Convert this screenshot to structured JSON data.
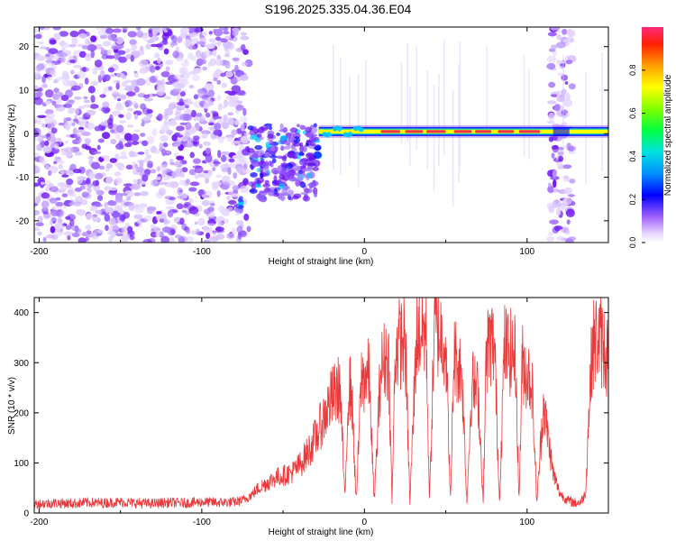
{
  "figure": {
    "title": "S196.2025.335.04.36.E04"
  },
  "chart_data": [
    {
      "type": "heatmap",
      "name": "spectrogram",
      "title": "S196.2025.335.04.36.E04",
      "xlabel": "Height of straight line (km)",
      "ylabel": "Frequency (Hz)",
      "xlim": [
        -203,
        150
      ],
      "ylim": [
        -25,
        24.5
      ],
      "xticks": [
        -200,
        -100,
        0,
        100
      ],
      "yticks": [
        -20,
        -10,
        0,
        10,
        20
      ],
      "colorbar": {
        "label": "Normalized spectral amplitude",
        "range": [
          0,
          1
        ],
        "ticks": [
          0.0,
          0.2,
          0.4,
          0.6,
          0.8
        ],
        "tick_labels": [
          "0.0",
          "0.2",
          "0.4",
          "0.6",
          "0.8"
        ],
        "colormap": [
          "#e8d8ff",
          "#7f00ff",
          "#0000ff",
          "#00c8ff",
          "#00ff60",
          "#a0ff00",
          "#ffff00",
          "#ff8000",
          "#ff0000",
          "#ff2080"
        ]
      },
      "regions": [
        {
          "x_range": [
            -203,
            -71
          ],
          "desc": "broadband noise",
          "amplitude": 0.1
        },
        {
          "x_range": [
            -70,
            -28
          ],
          "desc": "scattered energy",
          "freq_range": [
            -15,
            2
          ],
          "amplitude": 0.2
        },
        {
          "x_range": [
            -28,
            150
          ],
          "desc": "narrow tone",
          "freq": 0.5,
          "amplitude": 0.95
        },
        {
          "x_range": [
            114,
            128
          ],
          "desc": "broadband noise",
          "amplitude": 0.1
        }
      ],
      "colors": {
        "noise": "#8a2be2",
        "tone_core": "#e8384f",
        "tone_edge": "#00d0c0"
      }
    },
    {
      "type": "line",
      "name": "snr",
      "xlabel": "Height of straight line (km)",
      "ylabel": "SNR (10 * v/v)",
      "xlim": [
        -203,
        150
      ],
      "ylim": [
        0,
        430
      ],
      "xticks": [
        -200,
        -100,
        0,
        100
      ],
      "yticks": [
        0,
        100,
        200,
        300,
        400
      ],
      "color": "#e83a3a",
      "series": [
        {
          "name": "SNR",
          "x": [
            -203,
            -190,
            -180,
            -170,
            -160,
            -150,
            -140,
            -130,
            -120,
            -110,
            -100,
            -90,
            -80,
            -75,
            -70,
            -65,
            -60,
            -55,
            -50,
            -45,
            -40,
            -35,
            -30,
            -25,
            -20,
            -15,
            -12,
            -10,
            -8,
            -5,
            -2,
            0,
            3,
            6,
            10,
            13,
            15,
            17,
            19,
            22,
            25,
            28,
            32,
            35,
            38,
            40,
            43,
            46,
            50,
            53,
            55,
            57,
            60,
            63,
            66,
            70,
            73,
            75,
            77,
            80,
            83,
            86,
            90,
            93,
            95,
            97,
            100,
            103,
            106,
            110,
            113,
            116,
            120,
            125,
            130,
            133,
            136,
            138,
            140,
            143,
            146,
            150
          ],
          "y": [
            18,
            20,
            19,
            21,
            20,
            22,
            20,
            19,
            21,
            20,
            22,
            21,
            22,
            25,
            35,
            50,
            60,
            70,
            75,
            80,
            95,
            120,
            150,
            190,
            230,
            250,
            25,
            240,
            255,
            20,
            265,
            270,
            275,
            20,
            285,
            310,
            300,
            20,
            330,
            340,
            345,
            20,
            355,
            365,
            360,
            20,
            370,
            360,
            345,
            20,
            320,
            300,
            280,
            20,
            260,
            240,
            20,
            320,
            340,
            335,
            20,
            330,
            320,
            310,
            20,
            300,
            280,
            260,
            20,
            220,
            150,
            80,
            40,
            25,
            20,
            22,
            40,
            200,
            330,
            350,
            340,
            310
          ]
        }
      ]
    }
  ]
}
